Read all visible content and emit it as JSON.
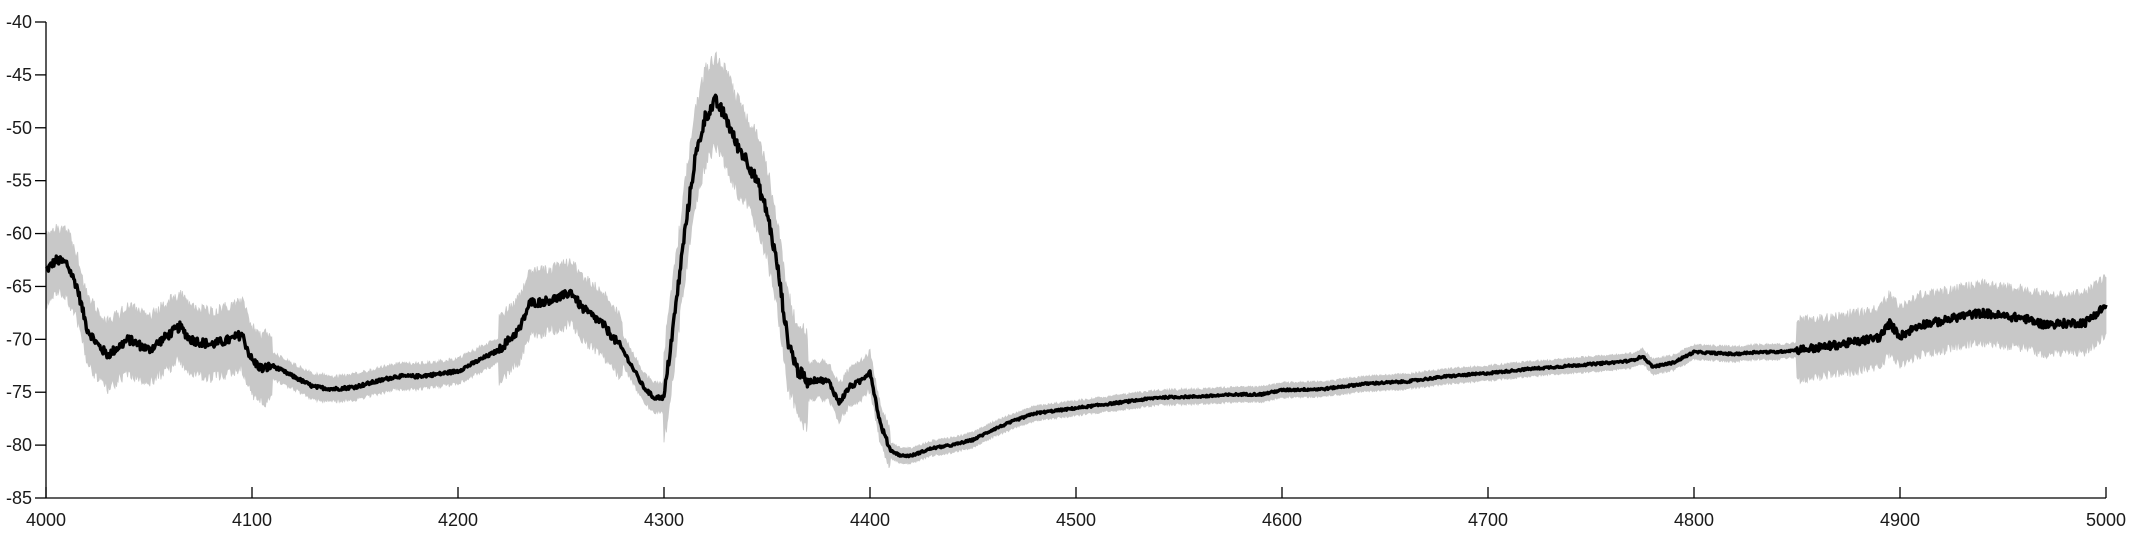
{
  "chart_data": {
    "type": "line",
    "title": "",
    "xlabel": "",
    "ylabel": "",
    "xlim": [
      4000,
      5000
    ],
    "ylim": [
      -85,
      -40
    ],
    "x_ticks": [
      "4000",
      "4100",
      "4200",
      "4300",
      "4400",
      "4500",
      "4600",
      "4700",
      "4800",
      "4900",
      "5000"
    ],
    "y_ticks": [
      "-40",
      "-45",
      "-50",
      "-55",
      "-60",
      "-65",
      "-70",
      "-75",
      "-80",
      "-85"
    ],
    "grid": false,
    "legend": "none",
    "series": [
      {
        "line_color": "#000000",
        "band_color": "#c8c8c8",
        "x": [
          4000,
          4005,
          4010,
          4015,
          4020,
          4025,
          4030,
          4040,
          4050,
          4060,
          4065,
          4070,
          4080,
          4090,
          4095,
          4100,
          4105,
          4110,
          4120,
          4130,
          4140,
          4150,
          4160,
          4170,
          4180,
          4190,
          4200,
          4210,
          4220,
          4230,
          4235,
          4240,
          4250,
          4255,
          4260,
          4270,
          4280,
          4290,
          4295,
          4300,
          4305,
          4310,
          4315,
          4320,
          4325,
          4330,
          4335,
          4340,
          4345,
          4350,
          4355,
          4360,
          4365,
          4370,
          4375,
          4380,
          4385,
          4390,
          4395,
          4400,
          4405,
          4410,
          4415,
          4420,
          4430,
          4440,
          4450,
          4460,
          4470,
          4480,
          4500,
          4520,
          4540,
          4560,
          4580,
          4590,
          4600,
          4620,
          4640,
          4660,
          4680,
          4700,
          4720,
          4740,
          4760,
          4770,
          4775,
          4780,
          4790,
          4800,
          4810,
          4820,
          4830,
          4840,
          4860,
          4880,
          4890,
          4895,
          4900,
          4910,
          4920,
          4930,
          4940,
          4950,
          4960,
          4970,
          4980,
          4990,
          5000
        ],
        "y": [
          -63.5,
          -62.5,
          -62.8,
          -65,
          -69,
          -70.5,
          -71.5,
          -70,
          -71,
          -69.5,
          -68.8,
          -70,
          -70.5,
          -70,
          -69.5,
          -72,
          -72.8,
          -72.5,
          -73.5,
          -74.5,
          -74.7,
          -74.5,
          -74,
          -73.5,
          -73.5,
          -73.3,
          -73,
          -72,
          -71,
          -69,
          -66.5,
          -66.5,
          -66,
          -65.5,
          -67,
          -68.5,
          -71,
          -74.5,
          -75.5,
          -75.5,
          -68,
          -60,
          -53,
          -49,
          -47.5,
          -49,
          -51.5,
          -53,
          -55,
          -58,
          -63,
          -70,
          -73,
          -74,
          -73.8,
          -74,
          -76,
          -74.5,
          -74,
          -73,
          -78,
          -80.5,
          -81,
          -81,
          -80.3,
          -80,
          -79.5,
          -78.5,
          -77.7,
          -77,
          -76.5,
          -76,
          -75.5,
          -75.4,
          -75.2,
          -75.2,
          -74.8,
          -74.7,
          -74.2,
          -74,
          -73.5,
          -73.2,
          -72.8,
          -72.5,
          -72.2,
          -72,
          -71.6,
          -72.6,
          -72.2,
          -71.2,
          -71.3,
          -71.4,
          -71.2,
          -71.2,
          -70.8,
          -70.2,
          -69.8,
          -68.5,
          -69.7,
          -68.6,
          -68.3,
          -67.8,
          -67.5,
          -67.8,
          -68,
          -68.6,
          -68.5,
          -68.4,
          -66.8
        ]
      }
    ]
  }
}
